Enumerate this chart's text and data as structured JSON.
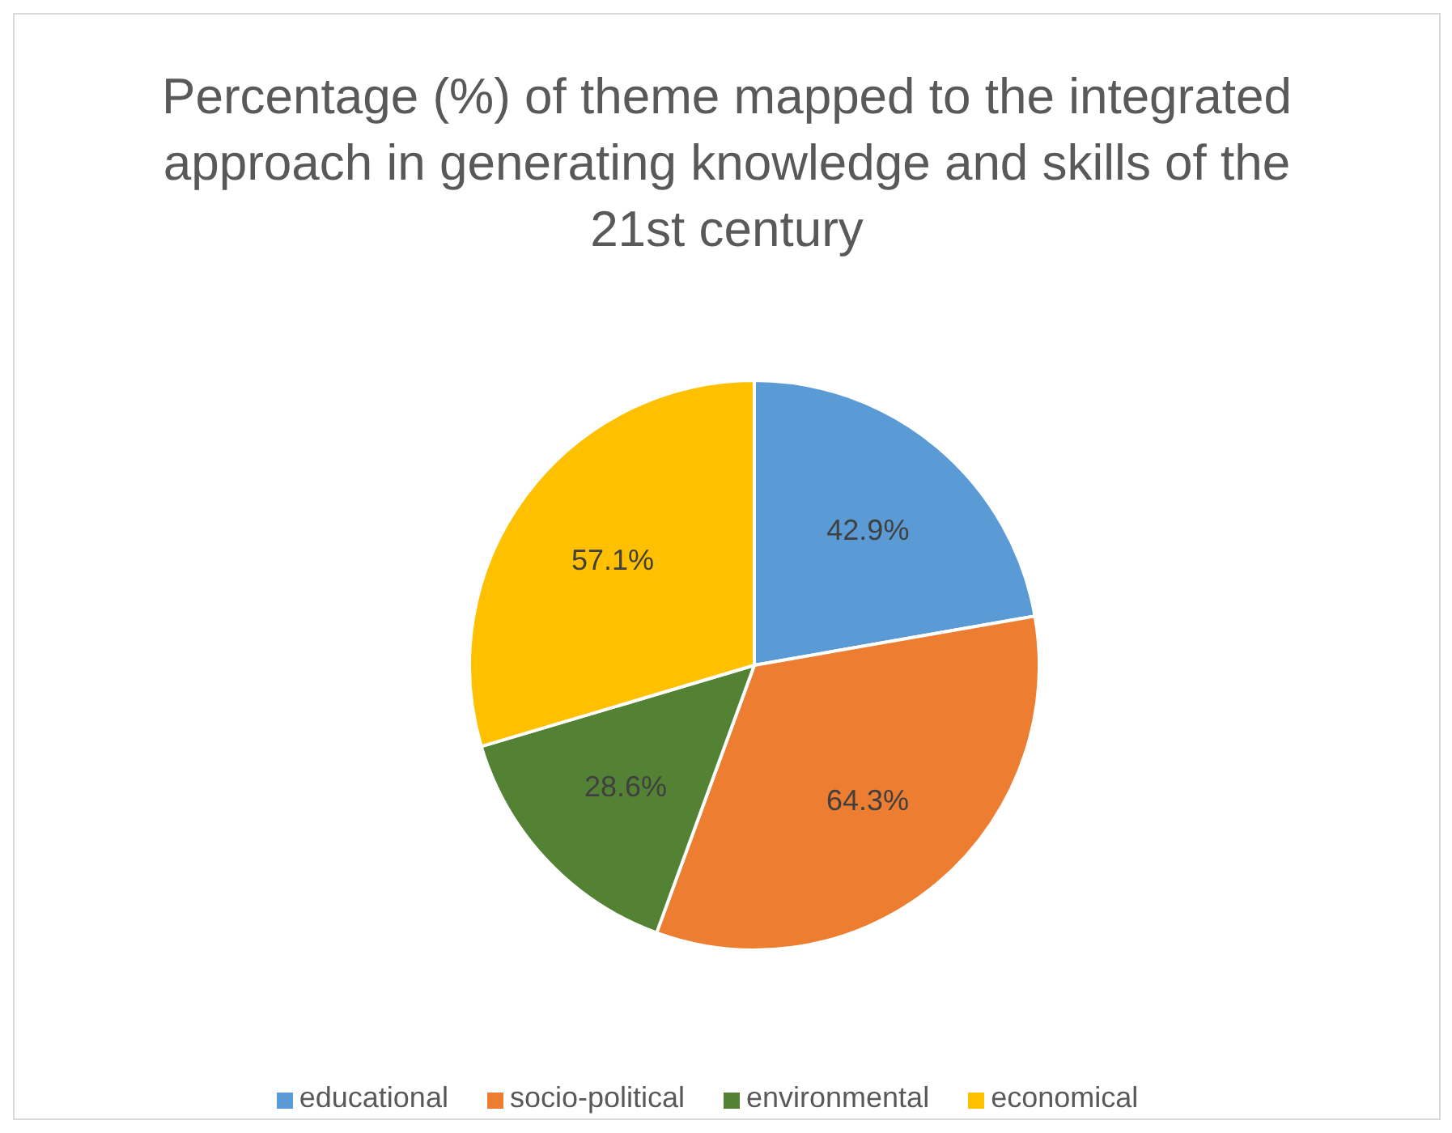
{
  "chart_data": {
    "type": "pie",
    "title": "Percentage (%) of theme mapped to the integrated approach in generating knowledge and skills of the 21st century",
    "categories": [
      "educational",
      "socio-political",
      "environmental",
      "economical"
    ],
    "values": [
      42.9,
      64.3,
      28.6,
      57.1
    ],
    "colors": [
      "#5b9bd5",
      "#ed7d31",
      "#548235",
      "#ffc000"
    ],
    "value_labels": [
      "42.9%",
      "64.3%",
      "28.6%",
      "57.1%"
    ],
    "legend": "bottom"
  }
}
